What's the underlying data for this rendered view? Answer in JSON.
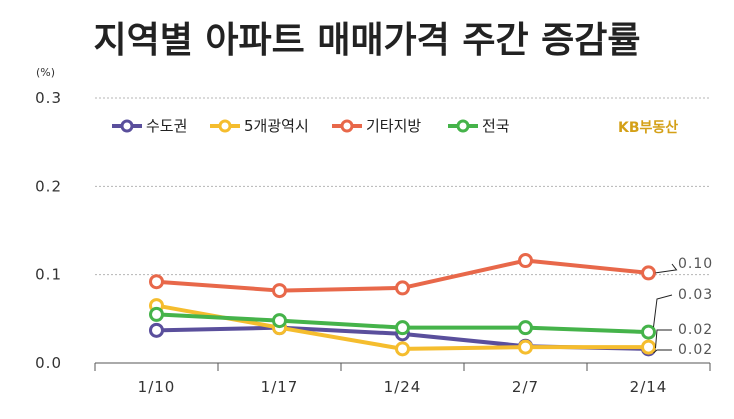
{
  "chart_data": {
    "type": "line",
    "title": "지역별 아파트 매매가격 주간 증감률",
    "ylabel": "(%)",
    "xlabel": "",
    "categories": [
      "1/10",
      "1/17",
      "1/24",
      "2/7",
      "2/14"
    ],
    "ylim": [
      0,
      0.3
    ],
    "yticks": [
      "0.0",
      "0.1",
      "0.2",
      "0.3"
    ],
    "grid": true,
    "legend_position": "top-left",
    "series": [
      {
        "name": "수도권",
        "color": "#5a4f9c",
        "values": [
          0.037,
          0.04,
          0.033,
          0.019,
          0.016
        ]
      },
      {
        "name": "5개광역시",
        "color": "#f5bd2e",
        "values": [
          0.065,
          0.04,
          0.016,
          0.018,
          0.018
        ]
      },
      {
        "name": "기타지방",
        "color": "#e8684a",
        "values": [
          0.092,
          0.082,
          0.085,
          0.116,
          0.102
        ]
      },
      {
        "name": "전국",
        "color": "#45b34a",
        "values": [
          0.055,
          0.048,
          0.04,
          0.04,
          0.035
        ]
      }
    ],
    "annotations": [
      {
        "text": "0.10",
        "series": 2,
        "point": 4
      },
      {
        "text": "0.03",
        "series": 3,
        "point": 4
      },
      {
        "text": "0.02",
        "series": 1,
        "point": 4
      },
      {
        "text": "0.02",
        "series": 0,
        "point": 4
      }
    ],
    "brand": "KB부동산"
  }
}
